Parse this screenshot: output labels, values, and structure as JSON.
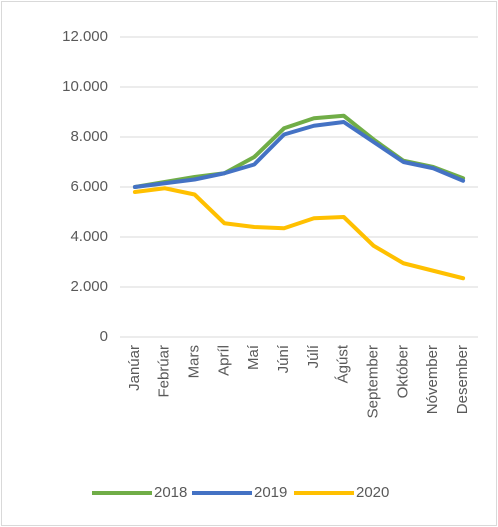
{
  "chart_data": {
    "type": "line",
    "categories": [
      "Janúar",
      "Febrúar",
      "Mars",
      "Apríl",
      "Maí",
      "Júní",
      "Júlí",
      "Ágúst",
      "September",
      "Október",
      "Nóvember",
      "Desember"
    ],
    "series": [
      {
        "name": "2018",
        "color": "#70ad47",
        "values": [
          6000,
          6200,
          6400,
          6550,
          7200,
          8350,
          8750,
          8850,
          7900,
          7050,
          6800,
          6350
        ]
      },
      {
        "name": "2019",
        "color": "#4472c4",
        "values": [
          6000,
          6150,
          6300,
          6550,
          6900,
          8100,
          8450,
          8600,
          7800,
          7000,
          6750,
          6250
        ]
      },
      {
        "name": "2020",
        "color": "#ffc000",
        "values": [
          5800,
          5950,
          5700,
          4550,
          4400,
          4350,
          4750,
          4800,
          3650,
          2950,
          2650,
          2350
        ]
      }
    ],
    "ylim": [
      0,
      12000
    ],
    "yticks": [
      0,
      {
        "value": 2000,
        "label": "2.000"
      },
      {
        "value": 4000,
        "label": "4.000"
      },
      {
        "value": 6000,
        "label": "6.000"
      },
      {
        "value": 8000,
        "label": "8.000"
      },
      {
        "value": 10000,
        "label": "10.000"
      },
      {
        "value": 12000,
        "label": "12.000"
      }
    ],
    "grid": true,
    "legend": "bottom"
  }
}
